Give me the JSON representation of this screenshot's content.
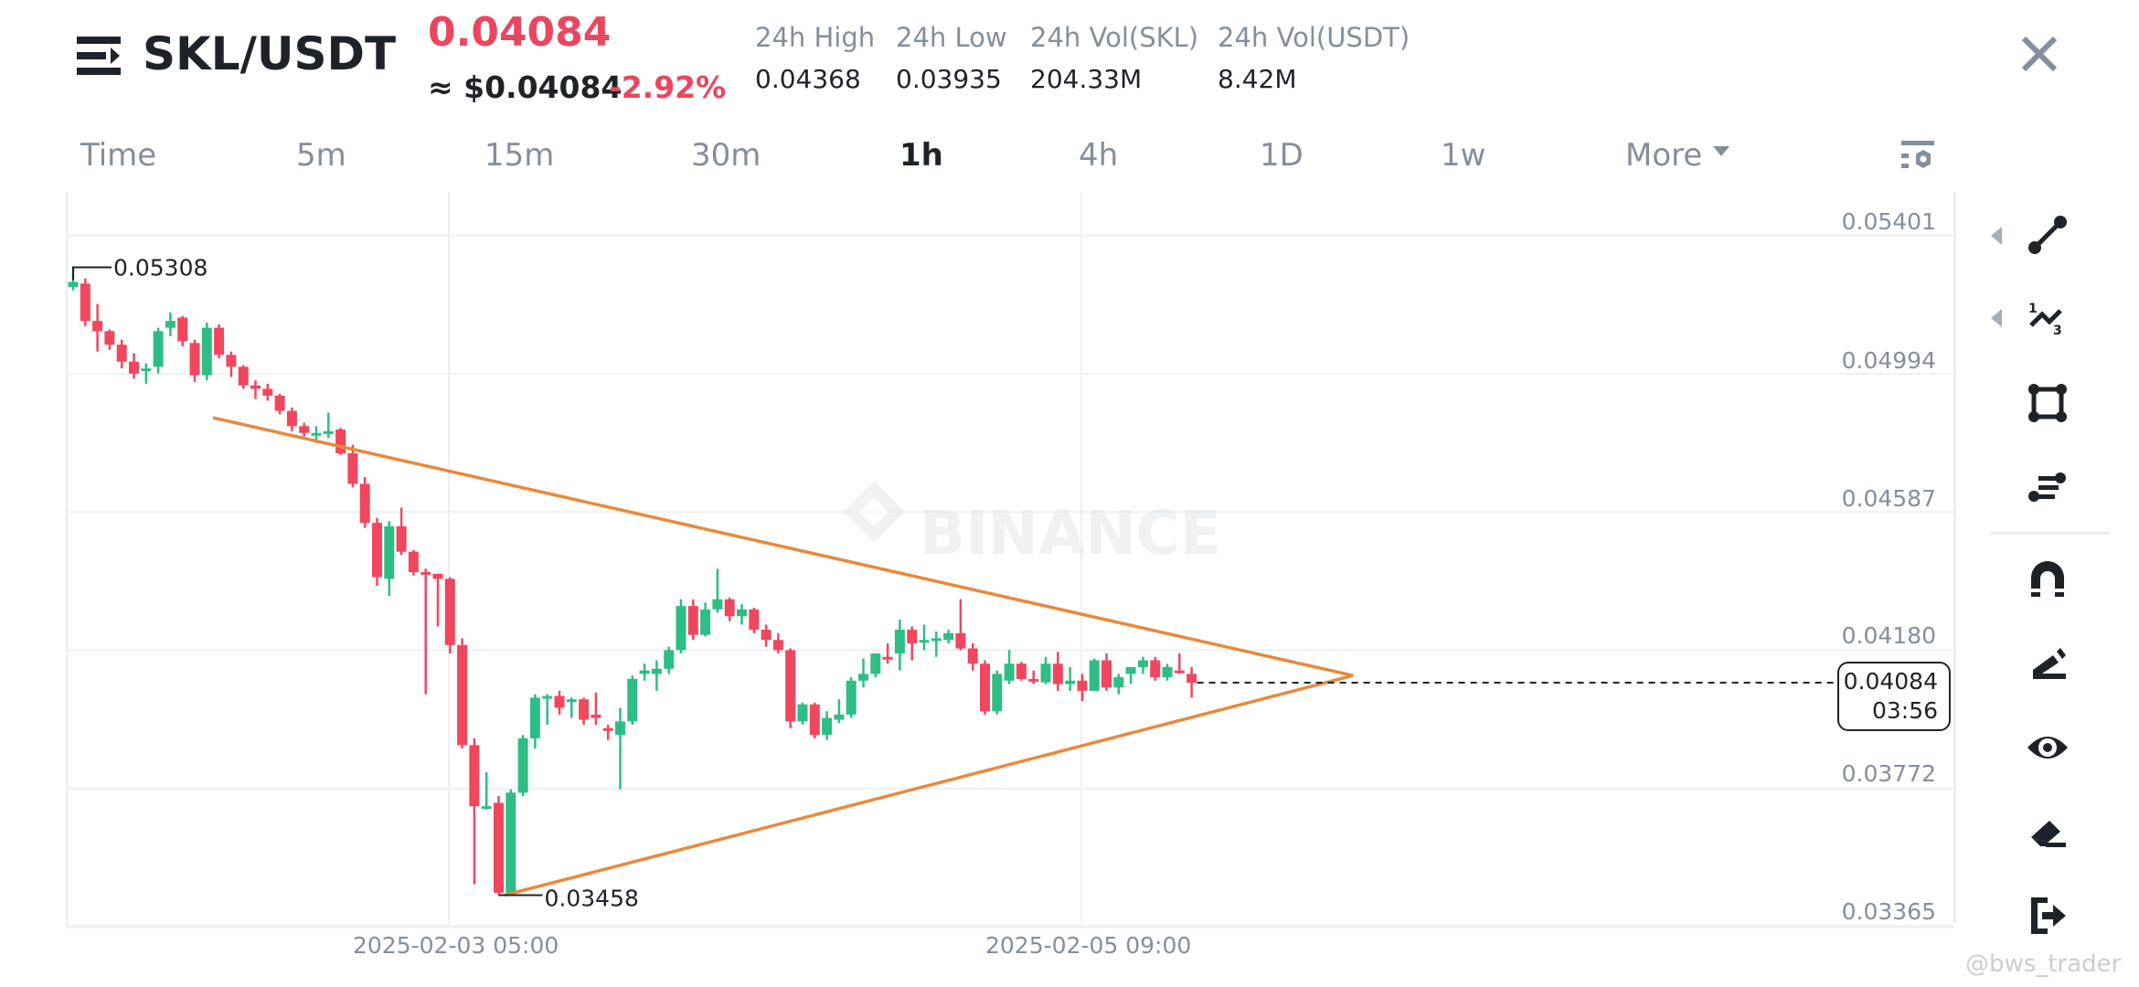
{
  "header": {
    "pair": "SKL/USDT",
    "last_price": "0.04084",
    "approx_usd": "≈ $0.04084",
    "change_pct": "-2.92%",
    "stats": [
      {
        "label": "24h High",
        "value": "0.04368"
      },
      {
        "label": "24h Low",
        "value": "0.03935"
      },
      {
        "label": "24h Vol(SKL)",
        "value": "204.33M"
      },
      {
        "label": "24h Vol(USDT)",
        "value": "8.42M"
      }
    ],
    "menu_icon": "menu-arrow-icon",
    "close_icon": "close-icon"
  },
  "intervals": {
    "items": [
      "Time",
      "5m",
      "15m",
      "30m",
      "1h",
      "4h",
      "1D",
      "1w",
      "More"
    ],
    "active": "1h",
    "settings_icon": "chart-settings-icon"
  },
  "price_axis": {
    "ticks": [
      "0.05401",
      "0.04994",
      "0.04587",
      "0.04180",
      "0.03772",
      "0.03365"
    ],
    "current_price": "0.04084",
    "countdown": "03:56"
  },
  "time_axis": {
    "ticks": [
      "2025-02-03 05:00",
      "2025-02-05 09:00"
    ]
  },
  "annotations": {
    "high_label": "0.05308",
    "low_label": "0.03458"
  },
  "watermark": "BINANCE",
  "credit": "@bws_trader",
  "toolbar": {
    "items": [
      {
        "name": "trend-line-icon",
        "has_submenu": true
      },
      {
        "name": "fibonacci-icon",
        "has_submenu": true
      },
      {
        "name": "rectangle-icon",
        "has_submenu": false
      },
      {
        "name": "parallel-lines-icon",
        "has_submenu": false
      },
      {
        "name": "magnet-icon",
        "has_submenu": false
      },
      {
        "name": "pencil-icon",
        "has_submenu": false
      },
      {
        "name": "eye-icon",
        "has_submenu": false
      },
      {
        "name": "eraser-icon",
        "has_submenu": false
      },
      {
        "name": "exit-icon",
        "has_submenu": false
      }
    ]
  },
  "colors": {
    "up": "#2ebd85",
    "down": "#f0475f",
    "trendline": "#e8893b",
    "grid": "#eef0f2",
    "axis_text": "#848e9c",
    "price_red": "#e9475f"
  },
  "chart_data": {
    "type": "candlestick",
    "title": "SKL/USDT 1h",
    "xlabel": "",
    "ylabel": "",
    "ylim": [
      0.03365,
      0.05401
    ],
    "y_ticks": [
      0.05401,
      0.04994,
      0.04587,
      0.0418,
      0.03772,
      0.03365
    ],
    "x_ticks": [
      "2025-02-03 05:00",
      "2025-02-05 09:00"
    ],
    "grid": true,
    "current_price": 0.04084,
    "max_label": 0.05308,
    "min_label": 0.03458,
    "candles_ohlc": [
      [
        0.0525,
        0.05308,
        0.0524,
        0.05265
      ],
      [
        0.0526,
        0.05275,
        0.05135,
        0.0515
      ],
      [
        0.0515,
        0.052,
        0.0506,
        0.0512
      ],
      [
        0.0512,
        0.05125,
        0.05065,
        0.0508
      ],
      [
        0.0508,
        0.05095,
        0.0501,
        0.0503
      ],
      [
        0.0503,
        0.05055,
        0.0498,
        0.04995
      ],
      [
        0.05005,
        0.05025,
        0.04965,
        0.0501
      ],
      [
        0.05015,
        0.0513,
        0.04995,
        0.0512
      ],
      [
        0.0513,
        0.05175,
        0.05105,
        0.0515
      ],
      [
        0.0516,
        0.05165,
        0.05075,
        0.0509
      ],
      [
        0.05085,
        0.05095,
        0.0497,
        0.0499
      ],
      [
        0.0499,
        0.05145,
        0.04975,
        0.0513
      ],
      [
        0.0513,
        0.0514,
        0.0504,
        0.0505
      ],
      [
        0.0505,
        0.0506,
        0.04985,
        0.05015
      ],
      [
        0.05015,
        0.0502,
        0.0495,
        0.0496
      ],
      [
        0.0496,
        0.04975,
        0.0492,
        0.0495
      ],
      [
        0.0495,
        0.04965,
        0.04915,
        0.0493
      ],
      [
        0.0493,
        0.04935,
        0.04875,
        0.04885
      ],
      [
        0.04885,
        0.04895,
        0.04825,
        0.0484
      ],
      [
        0.0484,
        0.0485,
        0.0481,
        0.0482
      ],
      [
        0.04815,
        0.0484,
        0.0479,
        0.0482
      ],
      [
        0.0482,
        0.0488,
        0.04805,
        0.04825
      ],
      [
        0.0483,
        0.04835,
        0.04755,
        0.0476
      ],
      [
        0.0476,
        0.04785,
        0.0466,
        0.0467
      ],
      [
        0.0467,
        0.0469,
        0.0454,
        0.04555
      ],
      [
        0.04555,
        0.0457,
        0.0437,
        0.04395
      ],
      [
        0.0439,
        0.0456,
        0.0434,
        0.04545
      ],
      [
        0.04545,
        0.046,
        0.0446,
        0.0447
      ],
      [
        0.0447,
        0.04475,
        0.044,
        0.0441
      ],
      [
        0.0441,
        0.0442,
        0.0405,
        0.04405
      ],
      [
        0.04405,
        0.044,
        0.0425,
        0.0439
      ],
      [
        0.0439,
        0.04395,
        0.0417,
        0.04195
      ],
      [
        0.04195,
        0.04215,
        0.0389,
        0.039
      ],
      [
        0.039,
        0.0392,
        0.0349,
        0.0372
      ],
      [
        0.0372,
        0.0382,
        0.0371,
        0.0372
      ],
      [
        0.0373,
        0.0375,
        0.03458,
        0.03465
      ],
      [
        0.03465,
        0.0377,
        0.03458,
        0.0376
      ],
      [
        0.0376,
        0.0393,
        0.0375,
        0.0392
      ],
      [
        0.0392,
        0.0405,
        0.0389,
        0.0404
      ],
      [
        0.04045,
        0.0405,
        0.0396,
        0.04045
      ],
      [
        0.04045,
        0.0406,
        0.0399,
        0.0401
      ],
      [
        0.0403,
        0.0404,
        0.0398,
        0.04035
      ],
      [
        0.04035,
        0.0404,
        0.0396,
        0.03975
      ],
      [
        0.0399,
        0.04055,
        0.0396,
        0.0398
      ],
      [
        0.0395,
        0.0396,
        0.03915,
        0.03945
      ],
      [
        0.0393,
        0.0401,
        0.0377,
        0.0397
      ],
      [
        0.0397,
        0.04105,
        0.0396,
        0.04095
      ],
      [
        0.0411,
        0.0414,
        0.0409,
        0.0412
      ],
      [
        0.0411,
        0.0415,
        0.0406,
        0.04125
      ],
      [
        0.04125,
        0.0419,
        0.0411,
        0.0418
      ],
      [
        0.0418,
        0.0433,
        0.0417,
        0.0431
      ],
      [
        0.0431,
        0.0433,
        0.0421,
        0.04225
      ],
      [
        0.04225,
        0.0432,
        0.0422,
        0.043
      ],
      [
        0.043,
        0.0442,
        0.0429,
        0.0433
      ],
      [
        0.0433,
        0.04335,
        0.04265,
        0.0428
      ],
      [
        0.0428,
        0.04315,
        0.04255,
        0.043
      ],
      [
        0.043,
        0.04305,
        0.0423,
        0.0424
      ],
      [
        0.0424,
        0.04255,
        0.0419,
        0.0421
      ],
      [
        0.0421,
        0.0423,
        0.0417,
        0.0418
      ],
      [
        0.0418,
        0.04185,
        0.0395,
        0.0397
      ],
      [
        0.0397,
        0.04025,
        0.0396,
        0.0402
      ],
      [
        0.0402,
        0.04025,
        0.0392,
        0.0393
      ],
      [
        0.0393,
        0.04,
        0.03915,
        0.0398
      ],
      [
        0.03975,
        0.04035,
        0.03965,
        0.0399
      ],
      [
        0.0399,
        0.041,
        0.0398,
        0.0409
      ],
      [
        0.0409,
        0.04155,
        0.0407,
        0.0411
      ],
      [
        0.0411,
        0.0417,
        0.041,
        0.0417
      ],
      [
        0.0416,
        0.042,
        0.0414,
        0.04155
      ],
      [
        0.0417,
        0.0427,
        0.0412,
        0.0424
      ],
      [
        0.0424,
        0.0425,
        0.0415,
        0.042
      ],
      [
        0.0421,
        0.04255,
        0.0418,
        0.0421
      ],
      [
        0.0421,
        0.04235,
        0.0416,
        0.04215
      ],
      [
        0.0421,
        0.0424,
        0.042,
        0.0423
      ],
      [
        0.0423,
        0.0433,
        0.0418,
        0.04185
      ],
      [
        0.04185,
        0.042,
        0.0412,
        0.0414
      ],
      [
        0.0414,
        0.0415,
        0.0399,
        0.04
      ],
      [
        0.04,
        0.0412,
        0.0399,
        0.0411
      ],
      [
        0.0409,
        0.0418,
        0.0408,
        0.0414
      ],
      [
        0.0414,
        0.04145,
        0.0409,
        0.04095
      ],
      [
        0.04095,
        0.0412,
        0.0408,
        0.0409
      ],
      [
        0.04085,
        0.0416,
        0.0408,
        0.0414
      ],
      [
        0.0414,
        0.04175,
        0.0406,
        0.0408
      ],
      [
        0.0408,
        0.0413,
        0.0406,
        0.0409
      ],
      [
        0.0409,
        0.0411,
        0.0403,
        0.0406
      ],
      [
        0.0406,
        0.04155,
        0.0406,
        0.0415
      ],
      [
        0.0415,
        0.0417,
        0.0406,
        0.0407
      ],
      [
        0.0407,
        0.0411,
        0.0405,
        0.041
      ],
      [
        0.0411,
        0.0413,
        0.0408,
        0.0413
      ],
      [
        0.0413,
        0.0416,
        0.0411,
        0.0415
      ],
      [
        0.0415,
        0.0416,
        0.0409,
        0.041
      ],
      [
        0.041,
        0.0414,
        0.0409,
        0.0413
      ],
      [
        0.0412,
        0.0417,
        0.0411,
        0.04115
      ],
      [
        0.0411,
        0.0413,
        0.0404,
        0.04084
      ]
    ],
    "trendlines": [
      {
        "name": "descending-resistance",
        "from": {
          "candle": 11.5,
          "price": 0.04865
        },
        "to": {
          "candle": 95.5,
          "price": 0.04105
        }
      },
      {
        "name": "ascending-support",
        "from": {
          "candle": 35.5,
          "price": 0.03458
        },
        "to": {
          "candle": 95.5,
          "price": 0.04105
        }
      }
    ]
  }
}
